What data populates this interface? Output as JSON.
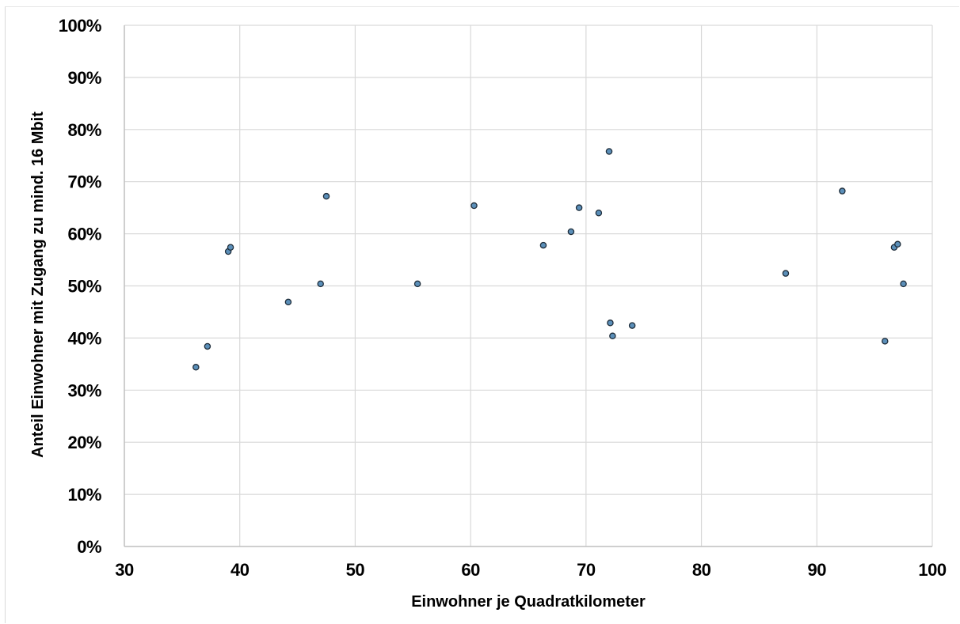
{
  "chart_data": {
    "type": "scatter",
    "title": "",
    "xlabel": "Einwohner je Quadratkilometer",
    "ylabel": "Anteil Einwohner mit Zugang zu mind. 16 Mbit",
    "xlim": [
      30,
      100
    ],
    "ylim": [
      0,
      1
    ],
    "x_ticks": [
      30,
      40,
      50,
      60,
      70,
      80,
      90,
      100
    ],
    "y_ticks": [
      "0%",
      "10%",
      "20%",
      "30%",
      "40%",
      "50%",
      "60%",
      "70%",
      "80%",
      "90%",
      "100%"
    ],
    "grid": true,
    "legend": "none",
    "marker_color": "#5b8fb9",
    "marker_edge_color": "#1f2d3a",
    "points": [
      {
        "x": 36.2,
        "y": 0.344
      },
      {
        "x": 37.2,
        "y": 0.384
      },
      {
        "x": 39.0,
        "y": 0.566
      },
      {
        "x": 39.2,
        "y": 0.574
      },
      {
        "x": 44.2,
        "y": 0.469
      },
      {
        "x": 47.0,
        "y": 0.504
      },
      {
        "x": 47.5,
        "y": 0.672
      },
      {
        "x": 55.4,
        "y": 0.504
      },
      {
        "x": 60.3,
        "y": 0.654
      },
      {
        "x": 66.3,
        "y": 0.578
      },
      {
        "x": 68.7,
        "y": 0.604
      },
      {
        "x": 69.4,
        "y": 0.65
      },
      {
        "x": 71.1,
        "y": 0.64
      },
      {
        "x": 72.0,
        "y": 0.758
      },
      {
        "x": 72.1,
        "y": 0.429
      },
      {
        "x": 72.3,
        "y": 0.404
      },
      {
        "x": 74.0,
        "y": 0.424
      },
      {
        "x": 87.3,
        "y": 0.524
      },
      {
        "x": 92.2,
        "y": 0.682
      },
      {
        "x": 95.9,
        "y": 0.394
      },
      {
        "x": 96.7,
        "y": 0.574
      },
      {
        "x": 97.0,
        "y": 0.58
      },
      {
        "x": 97.5,
        "y": 0.504
      }
    ]
  }
}
